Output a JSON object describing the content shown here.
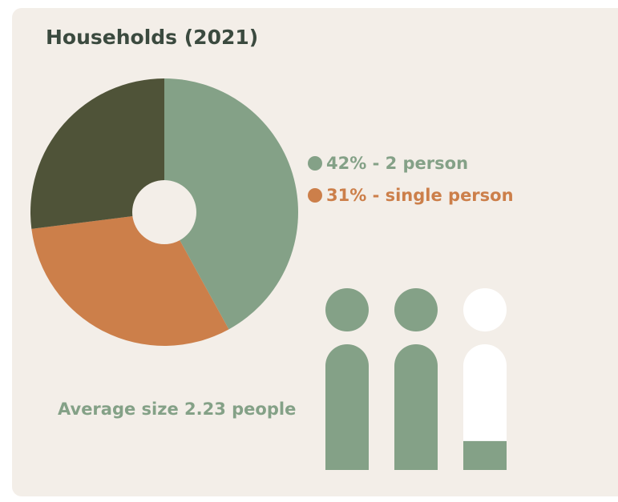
{
  "chart_data": {
    "type": "donut",
    "title": "Households (2021)",
    "categories": [
      "42% - 2 person",
      "31% - single person",
      null
    ],
    "values": [
      42,
      31,
      27
    ],
    "colors": [
      "#84a187",
      "#cc7f4a",
      "#4f5338"
    ],
    "annotation": "Average size 2.23 people",
    "average_size": 2.23
  }
}
